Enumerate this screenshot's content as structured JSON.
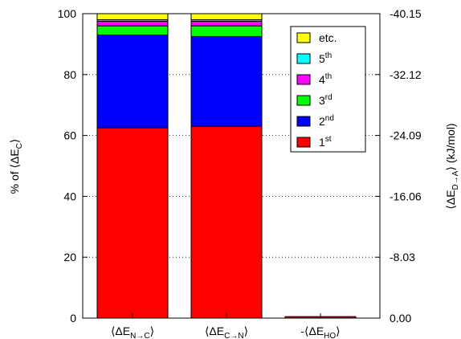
{
  "chart_data": {
    "type": "bar",
    "stacked": true,
    "title": "",
    "categories": [
      {
        "base": "⟨ΔE",
        "sub": "N→C",
        "close": "⟩",
        "prefix": ""
      },
      {
        "base": "⟨ΔE",
        "sub": "C→N",
        "close": "⟩",
        "prefix": ""
      },
      {
        "base": "⟨ΔE",
        "sub": "HO",
        "close": "⟩",
        "prefix": "-"
      }
    ],
    "series": [
      {
        "name": "1",
        "sup": "st",
        "color": "#ff0000",
        "values": [
          62.5,
          63.0,
          0.5
        ]
      },
      {
        "name": "2",
        "sup": "nd",
        "color": "#0000ff",
        "values": [
          30.5,
          29.5,
          0
        ]
      },
      {
        "name": "3",
        "sup": "rd",
        "color": "#00ff00",
        "values": [
          3.0,
          3.5,
          0
        ]
      },
      {
        "name": "4",
        "sup": "th",
        "color": "#ff00ff",
        "values": [
          1.5,
          1.5,
          0
        ]
      },
      {
        "name": "5",
        "sup": "th",
        "color": "#00ffff",
        "values": [
          0.5,
          0.5,
          0
        ]
      },
      {
        "name": "etc.",
        "sup": "",
        "color": "#ffff00",
        "values": [
          2.0,
          2.0,
          0
        ]
      }
    ],
    "ylim": [
      0,
      100
    ],
    "yticks": [
      "0",
      "20",
      "40",
      "60",
      "80",
      "100"
    ],
    "y2lim": [
      0.0,
      -40.15
    ],
    "y2ticks": [
      "0.00",
      "-8.03",
      "-16.06",
      "-24.09",
      "-32.12",
      "-40.15"
    ],
    "ylabel": {
      "prefix": "% of ⟨ΔE",
      "sub": "C",
      "suffix": "⟩"
    },
    "y2label": {
      "prefix": "⟨ΔE",
      "sub": "D→A",
      "suffix": "⟩ (kJ/mol)"
    },
    "grid": "horizontal-dotted",
    "legend": "top-right"
  }
}
